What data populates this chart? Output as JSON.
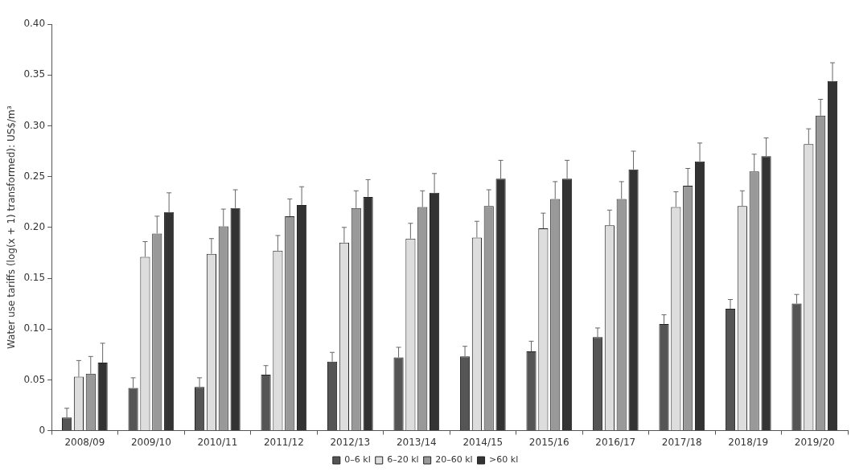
{
  "chart_data": {
    "type": "bar",
    "ylabel": "Water use tariffs (log(x + 1) transformed): US$/m³",
    "categories": [
      "2008/09",
      "2009/10",
      "2010/11",
      "2011/12",
      "2012/13",
      "2013/14",
      "2014/15",
      "2015/16",
      "2016/17",
      "2017/18",
      "2018/19",
      "2019/20"
    ],
    "series": [
      {
        "name": "0–6 kl",
        "color": "#555555",
        "values": [
          0.013,
          0.042,
          0.043,
          0.055,
          0.068,
          0.072,
          0.073,
          0.078,
          0.092,
          0.105,
          0.12,
          0.125
        ],
        "errors": [
          [
            0.013,
            0.022
          ],
          [
            0.042,
            0.052
          ],
          [
            0.043,
            0.052
          ],
          [
            0.055,
            0.064
          ],
          [
            0.068,
            0.077
          ],
          [
            0.072,
            0.082
          ],
          [
            0.073,
            0.083
          ],
          [
            0.078,
            0.088
          ],
          [
            0.092,
            0.101
          ],
          [
            0.105,
            0.114
          ],
          [
            0.12,
            0.129
          ],
          [
            0.125,
            0.134
          ]
        ]
      },
      {
        "name": "6–20 kl",
        "color": "#dddddd",
        "values": [
          0.053,
          0.171,
          0.174,
          0.177,
          0.185,
          0.189,
          0.19,
          0.199,
          0.202,
          0.22,
          0.221,
          0.282
        ],
        "errors": [
          [
            0.053,
            0.069
          ],
          [
            0.171,
            0.186
          ],
          [
            0.174,
            0.189
          ],
          [
            0.177,
            0.192
          ],
          [
            0.185,
            0.2
          ],
          [
            0.189,
            0.204
          ],
          [
            0.19,
            0.206
          ],
          [
            0.199,
            0.214
          ],
          [
            0.202,
            0.217
          ],
          [
            0.22,
            0.235
          ],
          [
            0.221,
            0.236
          ],
          [
            0.282,
            0.297
          ]
        ]
      },
      {
        "name": "20–60 kl",
        "color": "#999999",
        "values": [
          0.056,
          0.194,
          0.201,
          0.211,
          0.219,
          0.22,
          0.221,
          0.228,
          0.228,
          0.241,
          0.255,
          0.31
        ],
        "errors": [
          [
            0.056,
            0.073
          ],
          [
            0.194,
            0.211
          ],
          [
            0.201,
            0.218
          ],
          [
            0.211,
            0.228
          ],
          [
            0.219,
            0.236
          ],
          [
            0.22,
            0.236
          ],
          [
            0.221,
            0.237
          ],
          [
            0.228,
            0.245
          ],
          [
            0.228,
            0.245
          ],
          [
            0.241,
            0.258
          ],
          [
            0.255,
            0.272
          ],
          [
            0.31,
            0.326
          ]
        ]
      },
      {
        "name": ">60 kl",
        "color": "#333333",
        "values": [
          0.067,
          0.215,
          0.219,
          0.222,
          0.23,
          0.234,
          0.248,
          0.248,
          0.257,
          0.265,
          0.27,
          0.344
        ],
        "errors": [
          [
            0.067,
            0.086
          ],
          [
            0.215,
            0.234
          ],
          [
            0.219,
            0.237
          ],
          [
            0.222,
            0.24
          ],
          [
            0.23,
            0.247
          ],
          [
            0.234,
            0.253
          ],
          [
            0.248,
            0.266
          ],
          [
            0.248,
            0.266
          ],
          [
            0.257,
            0.275
          ],
          [
            0.265,
            0.283
          ],
          [
            0.27,
            0.288
          ],
          [
            0.344,
            0.362
          ]
        ]
      }
    ],
    "ylim": [
      0,
      0.4
    ],
    "yticks": [
      0,
      {
        "value": 0.05,
        "label": "0.05"
      },
      {
        "value": 0.1,
        "label": "0.10"
      },
      {
        "value": 0.15,
        "label": "0.15"
      },
      {
        "value": 0.2,
        "label": "0.20"
      },
      {
        "value": 0.25,
        "label": "0.25"
      },
      {
        "value": 0.3,
        "label": "0.30"
      },
      {
        "value": 0.35,
        "label": "0.35"
      },
      {
        "value": 0.4,
        "label": "0.40"
      }
    ],
    "grid": false,
    "legend": "bottom"
  }
}
